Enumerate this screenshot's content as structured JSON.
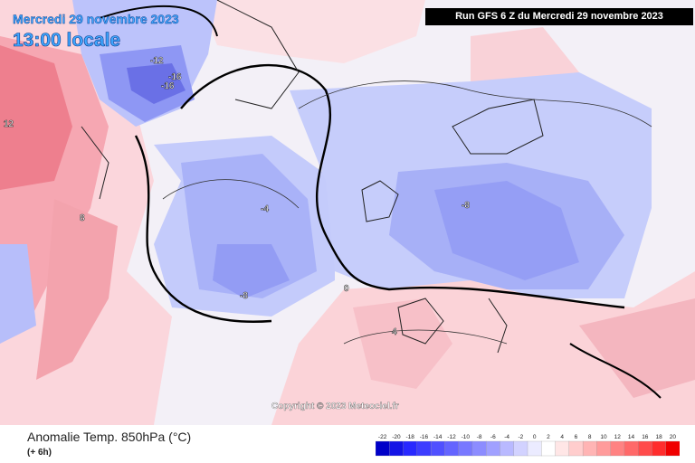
{
  "header": {
    "date_line": "Mercredi 29 novembre 2023",
    "time_line": "13:00 locale",
    "run_info": "Run GFS 6 Z du Mercredi 29 novembre 2023"
  },
  "copyright": "Copyright © 2023 Meteociel.fr",
  "footer": {
    "title": "Anomalie Temp. 850hPa (°C)",
    "subtitle": "(+ 6h)"
  },
  "legend": {
    "ticks": [
      "-22",
      "-20",
      "-18",
      "-16",
      "-14",
      "-12",
      "-10",
      "-8",
      "-6",
      "-4",
      "-2",
      "0",
      "2",
      "4",
      "6",
      "8",
      "10",
      "12",
      "14",
      "16",
      "18",
      "20"
    ],
    "colors": [
      "#0000c8",
      "#1414e6",
      "#2828ff",
      "#3c3cff",
      "#5050ff",
      "#6464ff",
      "#7878ff",
      "#8c8cff",
      "#a0a0ff",
      "#b9b9ff",
      "#d2d2ff",
      "#ebebff",
      "#ffffff",
      "#ffe6e6",
      "#ffcdcd",
      "#ffb4b4",
      "#ff9b9b",
      "#ff8282",
      "#ff6969",
      "#ff4b4b",
      "#ff2d2d",
      "#f00000"
    ]
  },
  "map_labels": [
    {
      "text": "-12",
      "id": "label-greenland-minus12"
    },
    {
      "text": "-16",
      "id": "label-greenland-minus16a"
    },
    {
      "text": "-16",
      "id": "label-greenland-minus16b"
    },
    {
      "text": "-8",
      "id": "label-atlantic-minus8"
    },
    {
      "text": "-4",
      "id": "label-atlantic-minus4"
    },
    {
      "text": "-8",
      "id": "label-europe-minus8"
    },
    {
      "text": "0",
      "id": "label-zero"
    },
    {
      "text": "4",
      "id": "label-africa-4"
    },
    {
      "text": "8",
      "id": "label-canada-8"
    },
    {
      "text": "12",
      "id": "label-canada-12"
    }
  ]
}
